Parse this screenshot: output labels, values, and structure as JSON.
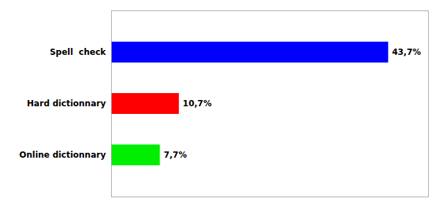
{
  "chart_data": {
    "type": "bar",
    "orientation": "horizontal",
    "categories": [
      "Online dictionnary",
      "Hard dictionnary",
      "Spell  check"
    ],
    "values": [
      7.7,
      10.7,
      43.7
    ],
    "value_labels": [
      "7,7%",
      "10,7%",
      "43,7%"
    ],
    "colors": [
      "#00ee00",
      "#ff0000",
      "#0000ff"
    ],
    "xlim": [
      0,
      50
    ],
    "data_labels": true,
    "tick_labels": "y",
    "grid": false
  }
}
